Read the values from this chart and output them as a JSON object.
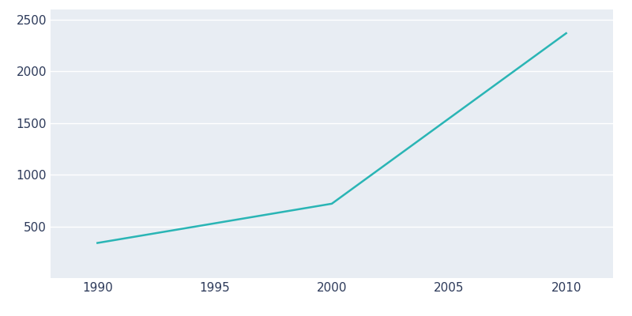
{
  "years": [
    1990,
    2000,
    2010
  ],
  "population": [
    340,
    720,
    2370
  ],
  "line_color": "#2ab5b5",
  "plot_bg_color": "#e8edf3",
  "fig_bg_color": "#ffffff",
  "grid_color": "#ffffff",
  "tick_label_color": "#2d3a5a",
  "ylim": [
    0,
    2600
  ],
  "xlim": [
    1988,
    2012
  ],
  "xticks": [
    1990,
    1995,
    2000,
    2005,
    2010
  ],
  "yticks": [
    500,
    1000,
    1500,
    2000,
    2500
  ],
  "line_width": 1.8,
  "figsize": [
    8.0,
    4.0
  ],
  "dpi": 100
}
